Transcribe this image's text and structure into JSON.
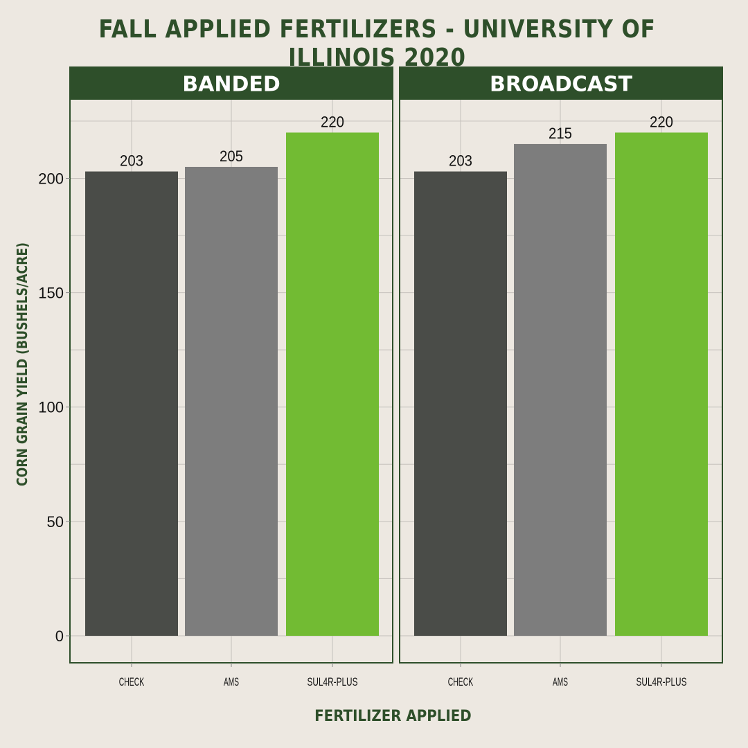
{
  "chart_data": {
    "type": "bar",
    "title": "FALL APPLIED FERTILIZERS - UNIVERSITY OF ILLINOIS 2020",
    "xlabel": "FERTILIZER APPLIED",
    "ylabel": "CORN GRAIN YIELD (BUSHELS/ACRE)",
    "categories": [
      "CHECK",
      "AMS",
      "SUL4R-PLUS"
    ],
    "ylim": [
      0,
      228
    ],
    "yticks": [
      0,
      50,
      100,
      150,
      200
    ],
    "grid": true,
    "legend": "none",
    "colors": {
      "CHECK": "#4a4c48",
      "AMS": "#7d7d7d",
      "SUL4R-PLUS": "#72bb33"
    },
    "panels": [
      {
        "name": "BANDED",
        "values": [
          203,
          205,
          220
        ]
      },
      {
        "name": "BROADCAST",
        "values": [
          203,
          215,
          220
        ]
      }
    ]
  },
  "theme": {
    "background": "#ede8e1",
    "accent": "#2e4f2a"
  }
}
